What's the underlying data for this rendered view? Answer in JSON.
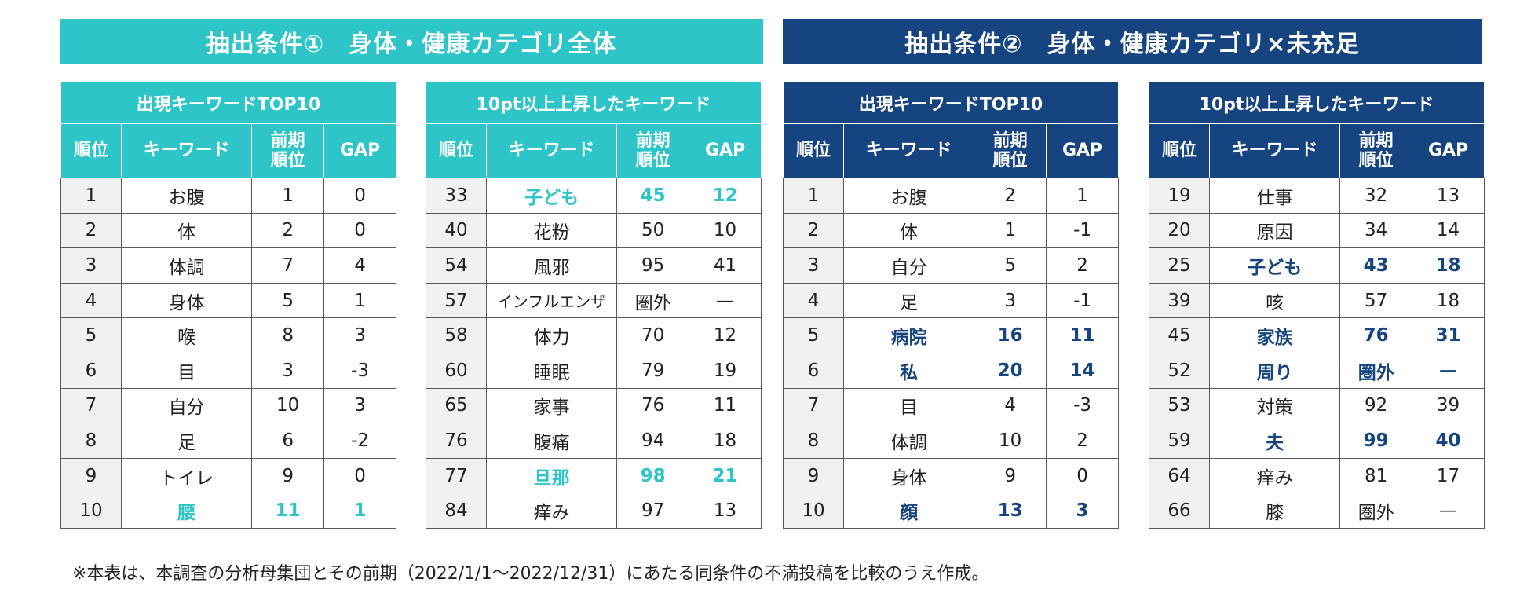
{
  "banners": {
    "left": "抽出条件①　身体・健康カテゴリ全体",
    "right": "抽出条件②　身体・健康カテゴリ×未充足"
  },
  "headers": {
    "rank": "順位",
    "keyword": "キーワード",
    "prev_rank": "前期\n順位",
    "gap": "GAP"
  },
  "tables": [
    {
      "title": "出現キーワードTOP10",
      "rows": [
        {
          "rank": "1",
          "keyword": "お腹",
          "prev": "1",
          "gap": "0",
          "hl": false
        },
        {
          "rank": "2",
          "keyword": "体",
          "prev": "2",
          "gap": "0",
          "hl": false
        },
        {
          "rank": "3",
          "keyword": "体調",
          "prev": "7",
          "gap": "4",
          "hl": false
        },
        {
          "rank": "4",
          "keyword": "身体",
          "prev": "5",
          "gap": "1",
          "hl": false
        },
        {
          "rank": "5",
          "keyword": "喉",
          "prev": "8",
          "gap": "3",
          "hl": false
        },
        {
          "rank": "6",
          "keyword": "目",
          "prev": "3",
          "gap": "-3",
          "hl": false
        },
        {
          "rank": "7",
          "keyword": "自分",
          "prev": "10",
          "gap": "3",
          "hl": false
        },
        {
          "rank": "8",
          "keyword": "足",
          "prev": "6",
          "gap": "-2",
          "hl": false
        },
        {
          "rank": "9",
          "keyword": "トイレ",
          "prev": "9",
          "gap": "0",
          "hl": false
        },
        {
          "rank": "10",
          "keyword": "腰",
          "prev": "11",
          "gap": "1",
          "hl": true
        }
      ]
    },
    {
      "title": "10pt以上上昇したキーワード",
      "rows": [
        {
          "rank": "33",
          "keyword": "子ども",
          "prev": "45",
          "gap": "12",
          "hl": true
        },
        {
          "rank": "40",
          "keyword": "花粉",
          "prev": "50",
          "gap": "10",
          "hl": false
        },
        {
          "rank": "54",
          "keyword": "風邪",
          "prev": "95",
          "gap": "41",
          "hl": false
        },
        {
          "rank": "57",
          "keyword": "インフルエンザ",
          "prev": "圏外",
          "gap": "—",
          "hl": false
        },
        {
          "rank": "58",
          "keyword": "体力",
          "prev": "70",
          "gap": "12",
          "hl": false
        },
        {
          "rank": "60",
          "keyword": "睡眠",
          "prev": "79",
          "gap": "19",
          "hl": false
        },
        {
          "rank": "65",
          "keyword": "家事",
          "prev": "76",
          "gap": "11",
          "hl": false
        },
        {
          "rank": "76",
          "keyword": "腹痛",
          "prev": "94",
          "gap": "18",
          "hl": false
        },
        {
          "rank": "77",
          "keyword": "旦那",
          "prev": "98",
          "gap": "21",
          "hl": true
        },
        {
          "rank": "84",
          "keyword": "痒み",
          "prev": "97",
          "gap": "13",
          "hl": false
        }
      ]
    },
    {
      "title": "出現キーワードTOP10",
      "rows": [
        {
          "rank": "1",
          "keyword": "お腹",
          "prev": "2",
          "gap": "1",
          "hl": false
        },
        {
          "rank": "2",
          "keyword": "体",
          "prev": "1",
          "gap": "-1",
          "hl": false
        },
        {
          "rank": "3",
          "keyword": "自分",
          "prev": "5",
          "gap": "2",
          "hl": false
        },
        {
          "rank": "4",
          "keyword": "足",
          "prev": "3",
          "gap": "-1",
          "hl": false
        },
        {
          "rank": "5",
          "keyword": "病院",
          "prev": "16",
          "gap": "11",
          "hl": true
        },
        {
          "rank": "6",
          "keyword": "私",
          "prev": "20",
          "gap": "14",
          "hl": true
        },
        {
          "rank": "7",
          "keyword": "目",
          "prev": "4",
          "gap": "-3",
          "hl": false
        },
        {
          "rank": "8",
          "keyword": "体調",
          "prev": "10",
          "gap": "2",
          "hl": false
        },
        {
          "rank": "9",
          "keyword": "身体",
          "prev": "9",
          "gap": "0",
          "hl": false
        },
        {
          "rank": "10",
          "keyword": "顔",
          "prev": "13",
          "gap": "3",
          "hl": true
        }
      ]
    },
    {
      "title": "10pt以上上昇したキーワード",
      "rows": [
        {
          "rank": "19",
          "keyword": "仕事",
          "prev": "32",
          "gap": "13",
          "hl": false
        },
        {
          "rank": "20",
          "keyword": "原因",
          "prev": "34",
          "gap": "14",
          "hl": false
        },
        {
          "rank": "25",
          "keyword": "子ども",
          "prev": "43",
          "gap": "18",
          "hl": true
        },
        {
          "rank": "39",
          "keyword": "咳",
          "prev": "57",
          "gap": "18",
          "hl": false
        },
        {
          "rank": "45",
          "keyword": "家族",
          "prev": "76",
          "gap": "31",
          "hl": true
        },
        {
          "rank": "52",
          "keyword": "周り",
          "prev": "圏外",
          "gap": "—",
          "hl": true
        },
        {
          "rank": "53",
          "keyword": "対策",
          "prev": "92",
          "gap": "39",
          "hl": false
        },
        {
          "rank": "59",
          "keyword": "夫",
          "prev": "99",
          "gap": "40",
          "hl": true
        },
        {
          "rank": "64",
          "keyword": "痒み",
          "prev": "81",
          "gap": "17",
          "hl": false
        },
        {
          "rank": "66",
          "keyword": "膝",
          "prev": "圏外",
          "gap": "—",
          "hl": false
        }
      ]
    }
  ],
  "colors": {
    "teal": "#2ec5c9",
    "navy": "#154480"
  },
  "footnote": "※本表は、本調査の分析母集団とその前期（2022/1/1〜2022/12/31）にあたる同条件の不満投稿を比較のうえ作成。"
}
